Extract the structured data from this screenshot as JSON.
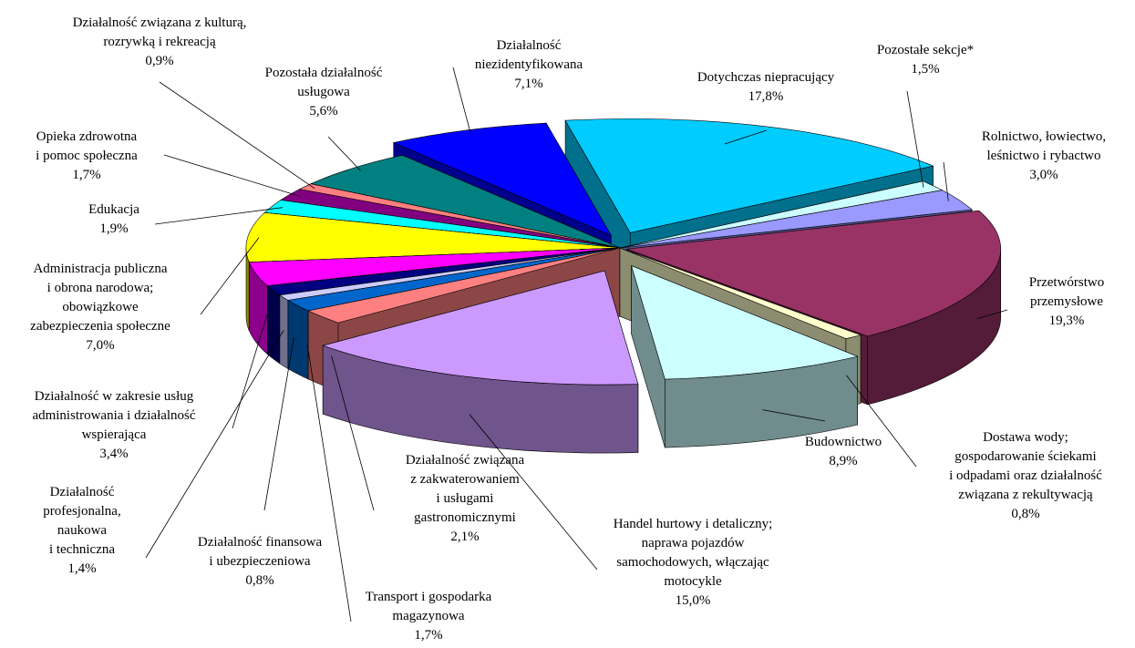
{
  "chart_data": {
    "type": "pie3d",
    "categories": [
      "Dotychczas niepracujący",
      "Pozostałe sekcje*",
      "Rolnictwo, łowiectwo,\nleśnictwo i rybactwo",
      "Przetwórstwo\nprzemysłowe",
      "Dostawa wody;\ngospodarowanie ściekami\ni odpadami oraz działalność\nzwiązana z rekultywacją",
      "Budownictwo",
      "Handel hurtowy i detaliczny;\nnaprawa pojazdów\nsamochodowych, włączając\nmotocykle",
      "Działalność związana\nz zakwaterowaniem\ni usługami\ngastronomicznymi",
      "Transport i gospodarka\nmagazynowa",
      "Działalność finansowa\ni ubezpieczeniowa",
      "Działalność\nprofesjonalna,\nnaukowa\ni techniczna",
      "Działalność w zakresie usług\nadministrowania i działalność\nwspierająca",
      "Administracja publiczna\ni obrona narodowa;\nobowiązkowe\nzabezpieczenia społeczne",
      "Edukacja",
      "Opieka zdrowotna\ni pomoc społeczna",
      "Działalność związana z kulturą,\nrozrywką i rekreacją",
      "Pozostała działalność\nusługowa",
      "Działalność\nniezidentyfikowana"
    ],
    "values": [
      17.8,
      1.5,
      3.0,
      19.3,
      0.8,
      8.9,
      15.0,
      2.1,
      1.7,
      0.8,
      1.4,
      3.4,
      7.0,
      1.9,
      1.7,
      0.9,
      5.6,
      7.1
    ],
    "value_labels": [
      "17,8%",
      "1,5%",
      "3,0%",
      "19,3%",
      "0,8%",
      "8,9%",
      "15,0%",
      "2,1%",
      "1,7%",
      "0,8%",
      "1,4%",
      "3,4%",
      "7,0%",
      "1,9%",
      "1,7%",
      "0,9%",
      "5,6%",
      "7,1%"
    ],
    "colors": [
      "#00ccff",
      "#ccffff",
      "#9999ff",
      "#993366",
      "#ffffcc",
      "#ccffff",
      "#cc99ff",
      "#ff8080",
      "#0066cc",
      "#ccccff",
      "#000080",
      "#ff00ff",
      "#ffff00",
      "#00ffff",
      "#800080",
      "#ff8080",
      "#008080",
      "#0000ff"
    ]
  }
}
